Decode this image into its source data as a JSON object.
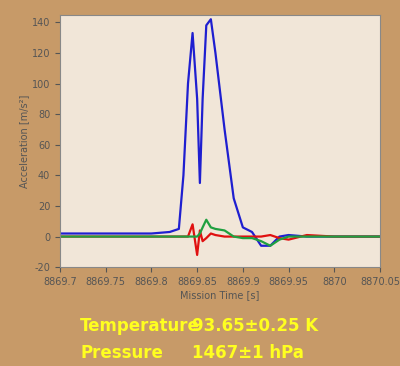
{
  "chart_data": {
    "type": "line",
    "x_label": "Mission Time [s]",
    "y_label": "Acceleration [m/s²]",
    "x": [
      8869.7,
      8869.75,
      8869.8,
      8869.82,
      8869.83,
      8869.835,
      8869.84,
      8869.845,
      8869.85,
      8869.853,
      8869.856,
      8869.86,
      8869.865,
      8869.87,
      8869.88,
      8869.89,
      8869.9,
      8869.91,
      8869.92,
      8869.93,
      8869.94,
      8869.95,
      8869.97,
      8870.0,
      8870.05
    ],
    "series": [
      {
        "color": "#1f1fd0",
        "values": [
          2,
          2,
          2,
          3,
          5,
          40,
          100,
          133,
          90,
          35,
          90,
          138,
          142,
          120,
          70,
          25,
          6,
          3,
          -6,
          -6,
          0,
          1,
          0,
          0,
          0
        ]
      },
      {
        "color": "#e01010",
        "values": [
          0,
          0,
          0,
          0,
          0,
          0,
          0,
          8,
          -12,
          4,
          -3,
          -1,
          2,
          1,
          0,
          0,
          0,
          0,
          0,
          1,
          -1,
          -2,
          1,
          0,
          0
        ]
      },
      {
        "color": "#20a040",
        "values": [
          0,
          0,
          0,
          0,
          0,
          0,
          0,
          0,
          0,
          2,
          6,
          11,
          6,
          5,
          4,
          0,
          -1,
          -1,
          -3,
          -6,
          -2,
          0,
          0,
          0,
          0
        ]
      }
    ],
    "xlim": [
      8869.7,
      8870.05
    ],
    "xticks": [
      8869.7,
      8869.75,
      8869.8,
      8869.85,
      8869.9,
      8869.95,
      8870,
      8870.05
    ],
    "ylim": [
      -20,
      145
    ],
    "yticks": [
      -20,
      0,
      20,
      40,
      60,
      80,
      100,
      120,
      140
    ],
    "grid": false,
    "annotations": [
      {
        "label": "Temperature",
        "text": "93.65±0.25 K"
      },
      {
        "label": "Pressure",
        "text": "1467±1 hPa"
      }
    ]
  }
}
